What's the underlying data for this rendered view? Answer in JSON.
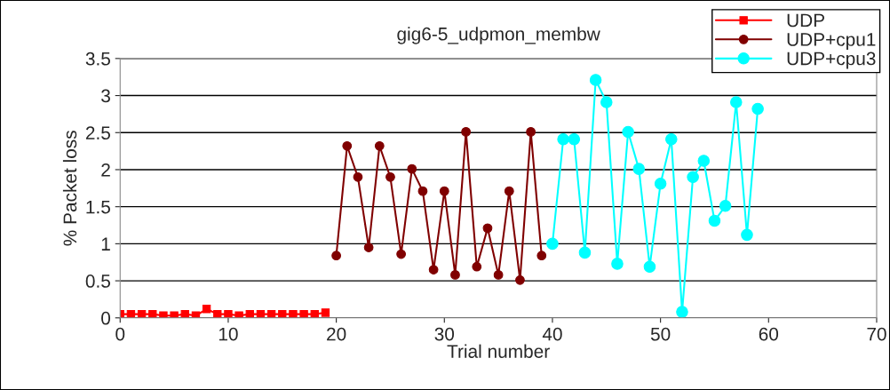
{
  "chart_data": {
    "type": "line",
    "title": "gig6-5_udpmon_membw",
    "xlabel": "Trial number",
    "ylabel": "% Packet loss",
    "xlim": [
      0,
      70
    ],
    "xticks": [
      0,
      10,
      20,
      30,
      40,
      50,
      60,
      70
    ],
    "ylim": [
      0,
      3.5
    ],
    "yticks": [
      0,
      0.5,
      1,
      1.5,
      2,
      2.5,
      3,
      3.5
    ],
    "grid": "y",
    "legend": "top right",
    "series": [
      {
        "name": "UDP",
        "color": "#ff0000",
        "marker": "square",
        "x": [
          0,
          1,
          2,
          3,
          4,
          5,
          6,
          7,
          8,
          9,
          10,
          11,
          12,
          13,
          14,
          15,
          16,
          17,
          18,
          19
        ],
        "values": [
          0.05,
          0.05,
          0.05,
          0.05,
          0.03,
          0.03,
          0.05,
          0.03,
          0.12,
          0.05,
          0.05,
          0.03,
          0.05,
          0.05,
          0.05,
          0.05,
          0.05,
          0.05,
          0.05,
          0.07
        ]
      },
      {
        "name": "UDP+cpu1",
        "color": "#800000",
        "marker": "circle",
        "x": [
          20,
          21,
          22,
          23,
          24,
          25,
          26,
          27,
          28,
          29,
          30,
          31,
          32,
          33,
          34,
          35,
          36,
          37,
          38,
          39
        ],
        "values": [
          0.84,
          2.32,
          1.9,
          0.95,
          2.32,
          1.9,
          0.86,
          2.01,
          1.71,
          0.65,
          1.71,
          0.58,
          2.51,
          0.69,
          1.21,
          0.58,
          1.71,
          0.51,
          2.51,
          0.84
        ]
      },
      {
        "name": "UDP+cpu3",
        "color": "#00ffff",
        "marker": "circle",
        "x": [
          40,
          41,
          42,
          43,
          44,
          45,
          46,
          47,
          48,
          49,
          50,
          51,
          52,
          53,
          54,
          55,
          56,
          57,
          58,
          59
        ],
        "values": [
          1.0,
          2.41,
          2.41,
          0.88,
          3.21,
          2.91,
          0.73,
          2.51,
          2.01,
          0.69,
          1.81,
          2.41,
          0.08,
          1.9,
          2.12,
          1.31,
          1.51,
          2.91,
          1.12,
          2.82
        ]
      }
    ]
  }
}
